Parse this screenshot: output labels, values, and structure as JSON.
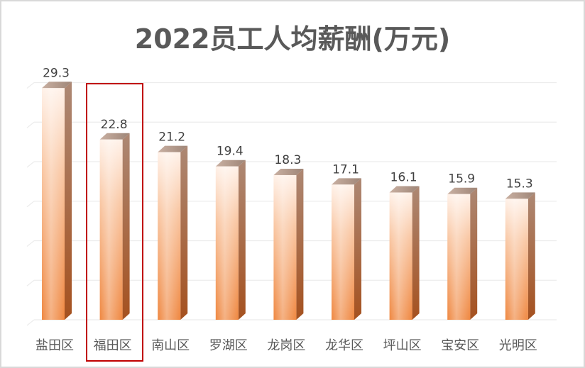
{
  "title": "2022员工人均薪酬(万元)",
  "chart_data": {
    "type": "bar",
    "title": "2022员工人均薪酬(万元)",
    "xlabel": "",
    "ylabel": "",
    "categories": [
      "盐田区",
      "福田区",
      "南山区",
      "罗湖区",
      "龙岗区",
      "龙华区",
      "坪山区",
      "宝安区",
      "光明区"
    ],
    "values": [
      29.3,
      22.8,
      21.2,
      19.4,
      18.3,
      17.1,
      16.1,
      15.9,
      15.3
    ],
    "ylim": [
      0,
      35
    ],
    "grid": true,
    "grid_step": 5,
    "legend": "none",
    "data_labels": true,
    "style": "3d-column",
    "highlighted_category": "福田区"
  },
  "colors": {
    "bar_bottom": "#f0883f",
    "bar_top": "#fde3d2",
    "bar_side": "#a0522d",
    "bar_cap": "#b49a8c",
    "highlight": "#c00000",
    "gridline": "#ececec",
    "title": "#595959",
    "labels": "#404040"
  }
}
